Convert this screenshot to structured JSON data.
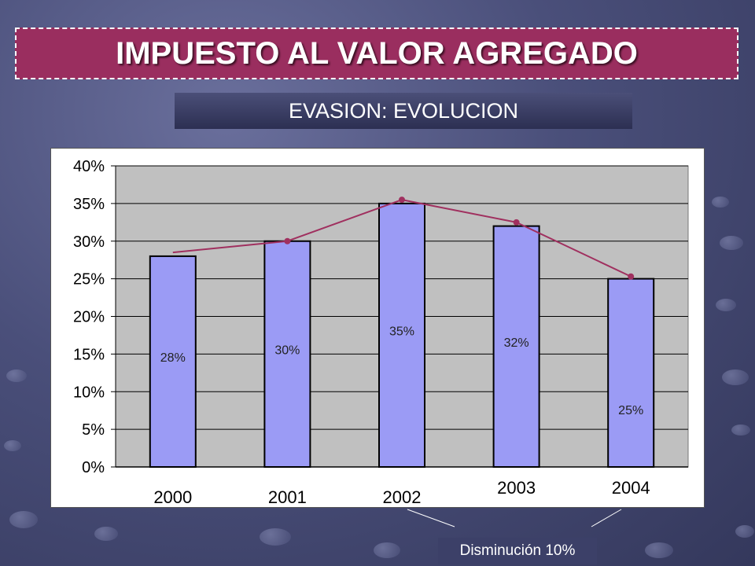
{
  "slide": {
    "title": "IMPUESTO AL VALOR AGREGADO",
    "subtitle": "EVASION: EVOLUCION",
    "note": "Disminución 10%"
  },
  "colors": {
    "title_bg": "#9a2e5f",
    "bar_fill": "#9b9bf5",
    "line": "#a0305f",
    "plot_bg": "#c0c0c0"
  },
  "chart_data": {
    "type": "bar",
    "categories": [
      "2000",
      "2001",
      "2002",
      "2003",
      "2004"
    ],
    "values": [
      28,
      30,
      35,
      32,
      25
    ],
    "data_labels": [
      "28%",
      "30%",
      "35%",
      "32%",
      "25%"
    ],
    "trend_line": [
      28.5,
      30,
      35.5,
      32.5,
      25.3
    ],
    "ylim": [
      0,
      40
    ],
    "yticks": [
      "0%",
      "5%",
      "10%",
      "15%",
      "20%",
      "25%",
      "30%",
      "35%",
      "40%"
    ],
    "grid": true,
    "legend": "none"
  }
}
